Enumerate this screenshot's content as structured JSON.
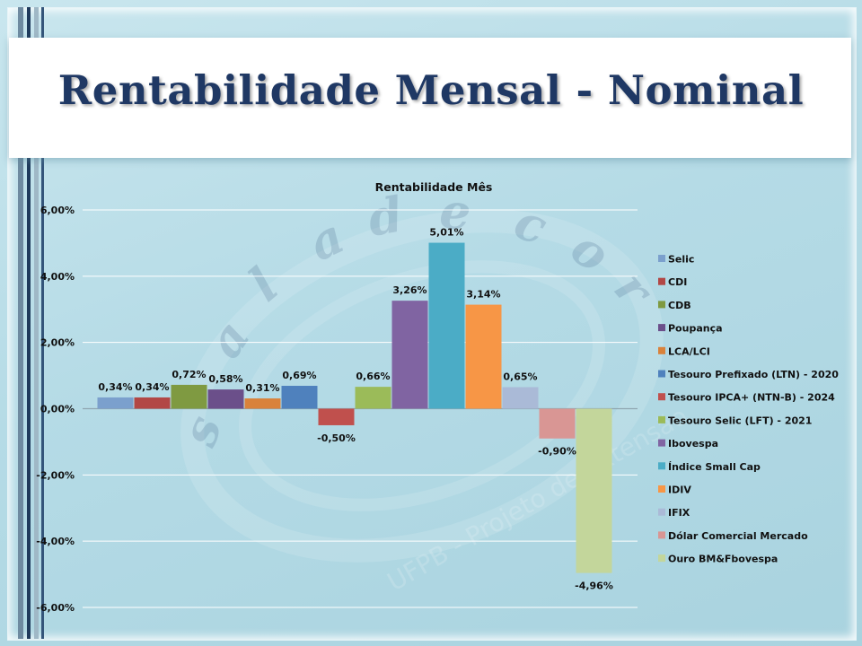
{
  "slide": {
    "title": "Rentabilidade Mensal - Nominal"
  },
  "chart_data": {
    "type": "bar",
    "title": "Rentabilidade Mês",
    "ylim": [
      -6,
      6
    ],
    "yticks": [
      6,
      4,
      2,
      0,
      -2,
      -4,
      -6
    ],
    "ytick_labels": [
      "6,00%",
      "4,00%",
      "2,00%",
      "0,00%",
      "-2,00%",
      "-4,00%",
      "-6,00%"
    ],
    "grid": true,
    "legend_position": "right",
    "series": [
      {
        "name": "Selic",
        "value": 0.34,
        "label": "0,34%",
        "color": "#7ba0cd"
      },
      {
        "name": "CDI",
        "value": 0.34,
        "label": "0,34%",
        "color": "#b24745"
      },
      {
        "name": "CDB",
        "value": 0.72,
        "label": "0,72%",
        "color": "#7f9a41"
      },
      {
        "name": "Poupança",
        "value": 0.58,
        "label": "0,58%",
        "color": "#6b4f8a"
      },
      {
        "name": "LCA/LCI",
        "value": 0.31,
        "label": "0,31%",
        "color": "#d9823b"
      },
      {
        "name": "Tesouro Prefixado (LTN) - 2020",
        "value": 0.69,
        "label": "0,69%",
        "color": "#4f81bd"
      },
      {
        "name": "Tesouro IPCA+ (NTN-B) - 2024",
        "value": -0.5,
        "label": "-0,50%",
        "color": "#c0504d"
      },
      {
        "name": "Tesouro Selic (LFT) - 2021",
        "value": 0.66,
        "label": "0,66%",
        "color": "#9bbb59"
      },
      {
        "name": "Ibovespa",
        "value": 3.26,
        "label": "3,26%",
        "color": "#8064a2"
      },
      {
        "name": "Índice Small Cap",
        "value": 5.01,
        "label": "5,01%",
        "color": "#4bacc6"
      },
      {
        "name": "IDIV",
        "value": 3.14,
        "label": "3,14%",
        "color": "#f79646"
      },
      {
        "name": "IFIX",
        "value": 0.65,
        "label": "0,65%",
        "color": "#aabad7"
      },
      {
        "name": "Dólar Comercial Mercado",
        "value": -0.9,
        "label": "-0,90%",
        "color": "#d99694"
      },
      {
        "name": "Ouro BM&Fbovespa",
        "value": -4.96,
        "label": "-4,96%",
        "color": "#c3d69b"
      }
    ]
  }
}
